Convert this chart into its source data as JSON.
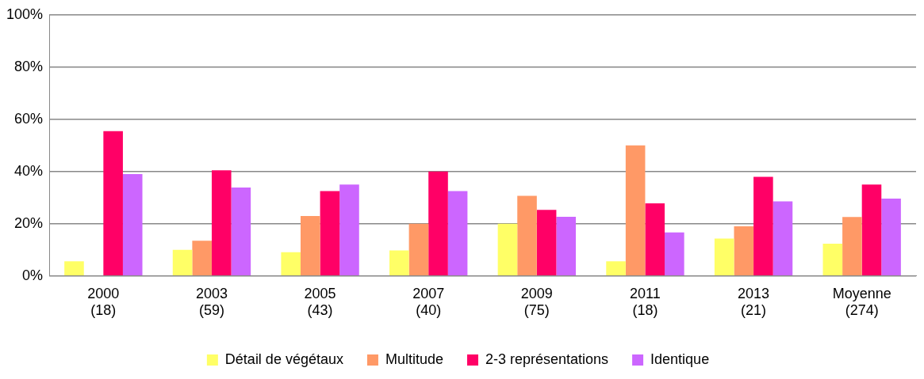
{
  "chart_data": {
    "type": "bar",
    "categories": [
      "2000\n(18)",
      "2003\n(59)",
      "2005\n(43)",
      "2007\n(40)",
      "2009\n(75)",
      "2011\n(18)",
      "2013\n(21)",
      "Moyenne\n(274)"
    ],
    "series": [
      {
        "name": "Détail de végétaux",
        "color": "#ffff66",
        "values": [
          5.6,
          10,
          9.1,
          9.8,
          20,
          5.6,
          14.3,
          12.4
        ]
      },
      {
        "name": "Multitude",
        "color": "#ff9966",
        "values": [
          0,
          13.5,
          23,
          20,
          30.7,
          50,
          19,
          22.6
        ]
      },
      {
        "name": "2-3 représentations",
        "color": "#ff0066",
        "values": [
          55.5,
          40.5,
          32.5,
          40,
          25.3,
          27.8,
          38,
          35
        ]
      },
      {
        "name": "Identique",
        "color": "#cc66ff",
        "values": [
          39,
          33.9,
          35,
          32.5,
          22.7,
          16.7,
          28.6,
          29.6
        ]
      }
    ],
    "ylim": [
      0,
      100
    ],
    "yticks": [
      {
        "value": 0,
        "label": "0%"
      },
      {
        "value": 20,
        "label": "20%"
      },
      {
        "value": 40,
        "label": "40%"
      },
      {
        "value": 60,
        "label": "60%"
      },
      {
        "value": 80,
        "label": "80%"
      },
      {
        "value": 100,
        "label": "100%"
      }
    ],
    "grid": "y",
    "legend": "bottom"
  }
}
